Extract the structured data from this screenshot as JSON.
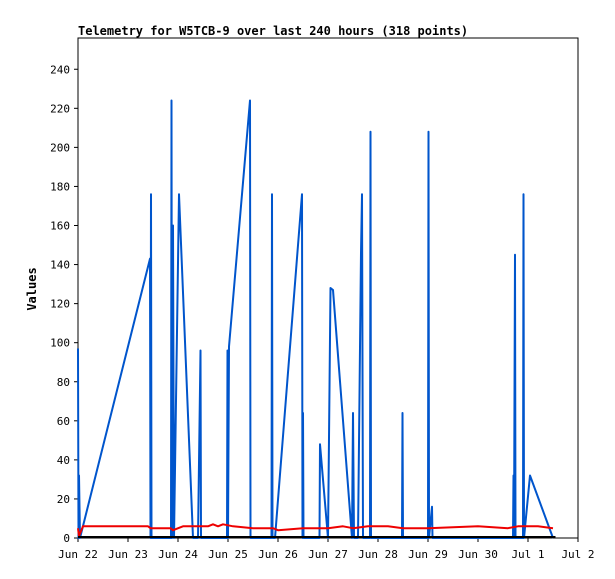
{
  "chart_data": {
    "type": "line",
    "title": "Telemetry for W5TCB-9 over last 240 hours (318 points)",
    "xlabel": "",
    "ylabel": "Values",
    "xlim": [
      0,
      10.0
    ],
    "ylim": [
      0,
      256
    ],
    "y_ticks": [
      0,
      20,
      40,
      60,
      80,
      100,
      120,
      140,
      160,
      180,
      200,
      220,
      240
    ],
    "x_ticks": [
      {
        "label": "Jun 22",
        "x": 0
      },
      {
        "label": "Jun 23",
        "x": 1
      },
      {
        "label": "Jun 24",
        "x": 2
      },
      {
        "label": "Jun 25",
        "x": 3
      },
      {
        "label": "Jun 26",
        "x": 4
      },
      {
        "label": "Jun 27",
        "x": 5
      },
      {
        "label": "Jun 28",
        "x": 6
      },
      {
        "label": "Jun 29",
        "x": 7
      },
      {
        "label": "Jun 30",
        "x": 8
      },
      {
        "label": "Jul 1",
        "x": 9
      },
      {
        "label": "Jul 2",
        "x": 10
      }
    ],
    "grid": false,
    "series": [
      {
        "color": "#0055cc",
        "points": [
          [
            0.0,
            97
          ],
          [
            0.01,
            0
          ],
          [
            0.02,
            32
          ],
          [
            0.04,
            0
          ],
          [
            1.44,
            143
          ],
          [
            1.45,
            0
          ],
          [
            1.46,
            176
          ],
          [
            1.47,
            0
          ],
          [
            1.86,
            0
          ],
          [
            1.87,
            224
          ],
          [
            1.88,
            0
          ],
          [
            1.9,
            160
          ],
          [
            1.92,
            0
          ],
          [
            2.02,
            176
          ],
          [
            2.3,
            0
          ],
          [
            2.4,
            0
          ],
          [
            2.45,
            96
          ],
          [
            2.46,
            0
          ],
          [
            2.98,
            0
          ],
          [
            2.99,
            96
          ],
          [
            3.0,
            0
          ],
          [
            3.02,
            98
          ],
          [
            3.44,
            224
          ],
          [
            3.45,
            0
          ],
          [
            3.87,
            0
          ],
          [
            3.88,
            176
          ],
          [
            3.89,
            0
          ],
          [
            3.94,
            0
          ],
          [
            4.48,
            176
          ],
          [
            4.49,
            0
          ],
          [
            4.5,
            64
          ],
          [
            4.51,
            0
          ],
          [
            4.83,
            0
          ],
          [
            4.84,
            48
          ],
          [
            5.0,
            0
          ],
          [
            5.05,
            128
          ],
          [
            5.1,
            127
          ],
          [
            5.48,
            0
          ],
          [
            5.5,
            64
          ],
          [
            5.52,
            0
          ],
          [
            5.6,
            0
          ],
          [
            5.66,
            146
          ],
          [
            5.68,
            176
          ],
          [
            5.7,
            0
          ],
          [
            5.84,
            0
          ],
          [
            5.85,
            208
          ],
          [
            5.86,
            0
          ],
          [
            6.48,
            0
          ],
          [
            6.49,
            64
          ],
          [
            6.5,
            0
          ],
          [
            7.0,
            0
          ],
          [
            7.01,
            208
          ],
          [
            7.02,
            0
          ],
          [
            7.08,
            16
          ],
          [
            7.09,
            0
          ],
          [
            8.7,
            0
          ],
          [
            8.71,
            32
          ],
          [
            8.72,
            0
          ],
          [
            8.74,
            145
          ],
          [
            8.75,
            0
          ],
          [
            8.9,
            0
          ],
          [
            8.91,
            176
          ],
          [
            8.92,
            0
          ],
          [
            9.04,
            32
          ],
          [
            9.5,
            0
          ]
        ]
      },
      {
        "color": "#ee0000",
        "points": [
          [
            0.0,
            5
          ],
          [
            0.02,
            1
          ],
          [
            0.1,
            6
          ],
          [
            1.4,
            6
          ],
          [
            1.45,
            5
          ],
          [
            1.85,
            5
          ],
          [
            1.9,
            4
          ],
          [
            2.1,
            6
          ],
          [
            2.6,
            6
          ],
          [
            2.7,
            7
          ],
          [
            2.8,
            6
          ],
          [
            2.9,
            7
          ],
          [
            3.1,
            6
          ],
          [
            3.5,
            5
          ],
          [
            3.9,
            5
          ],
          [
            4.0,
            4
          ],
          [
            4.5,
            5
          ],
          [
            5.0,
            5
          ],
          [
            5.3,
            6
          ],
          [
            5.5,
            5
          ],
          [
            5.8,
            6
          ],
          [
            6.2,
            6
          ],
          [
            6.5,
            5
          ],
          [
            7.0,
            5
          ],
          [
            8.0,
            6
          ],
          [
            8.6,
            5
          ],
          [
            8.8,
            6
          ],
          [
            9.2,
            6
          ],
          [
            9.5,
            5
          ]
        ]
      },
      {
        "color": "#000000",
        "points": [
          [
            0.0,
            0.5
          ],
          [
            9.55,
            0.5
          ]
        ]
      }
    ]
  }
}
